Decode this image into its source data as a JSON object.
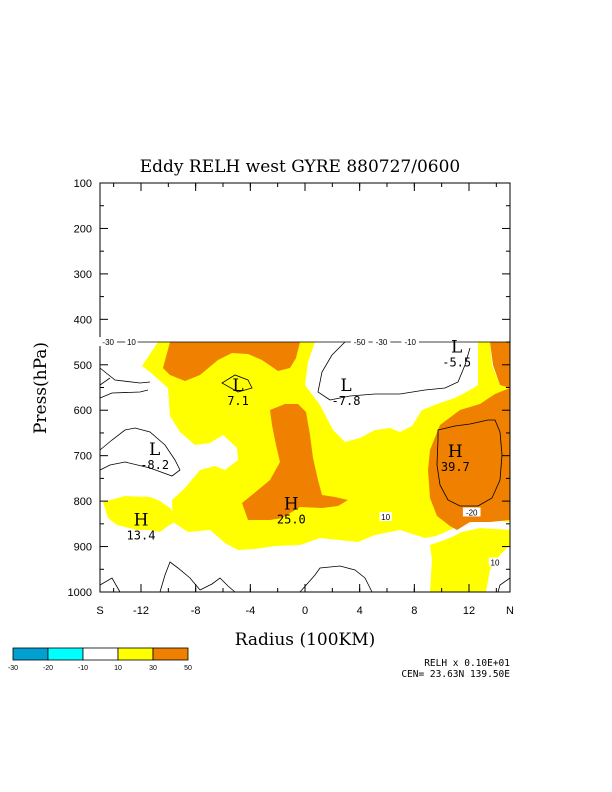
{
  "chart_data": {
    "type": "contour",
    "title": "Eddy RELH west GYRE 880727/0600",
    "xlabel": "Radius (100KM)",
    "ylabel": "Press(hPa)",
    "xlim": [
      -15,
      15
    ],
    "ylim": [
      1000,
      100
    ],
    "y_ticks": [
      "100",
      "200",
      "300",
      "400",
      "500",
      "600",
      "700",
      "800",
      "900",
      "1000"
    ],
    "y_tick_values": [
      100,
      200,
      300,
      400,
      500,
      600,
      700,
      800,
      900,
      1000
    ],
    "x_ticks": [
      {
        "label": "S",
        "value": -15
      },
      {
        "label": "-12",
        "value": -12
      },
      {
        "label": "-8",
        "value": -8
      },
      {
        "label": "-4",
        "value": -4
      },
      {
        "label": "0",
        "value": 0
      },
      {
        "label": "4",
        "value": 4
      },
      {
        "label": "8",
        "value": 8
      },
      {
        "label": "12",
        "value": 12
      },
      {
        "label": "N",
        "value": 15
      }
    ],
    "data_top_hPa": 450,
    "legend": {
      "colors": [
        "#00a0d0",
        "#00ffff",
        "#ffffff",
        "#ffff00",
        "#f08000"
      ],
      "labels": [
        "-30",
        "-20",
        "-10",
        "10",
        "30",
        "50"
      ]
    },
    "extrema": [
      {
        "type": "L",
        "value": "-5.5",
        "x": 11.1,
        "p": 460
      },
      {
        "type": "L",
        "value": "7.1",
        "x": -4.9,
        "p": 545
      },
      {
        "type": "L",
        "value": "-7.8",
        "x": 3.0,
        "p": 545
      },
      {
        "type": "L",
        "value": "-8.2",
        "x": -11.0,
        "p": 685
      },
      {
        "type": "H",
        "value": "39.7",
        "x": 11.0,
        "p": 690
      },
      {
        "type": "H",
        "value": "25.0",
        "x": -1.0,
        "p": 805
      },
      {
        "type": "H",
        "value": "13.4",
        "x": -12.0,
        "p": 840
      }
    ],
    "contour_labels": [
      {
        "text": "-30",
        "x": -14.4,
        "p": 450
      },
      {
        "text": "10",
        "x": -12.7,
        "p": 450
      },
      {
        "text": "-50",
        "x": 4.0,
        "p": 450
      },
      {
        "text": "-30",
        "x": 5.6,
        "p": 450
      },
      {
        "text": "-10",
        "x": 7.7,
        "p": 450
      },
      {
        "text": "10",
        "x": 5.9,
        "p": 835
      },
      {
        "text": "-20",
        "x": 12.2,
        "p": 825
      },
      {
        "text": "10",
        "x": 13.9,
        "p": 935
      }
    ],
    "footer": {
      "line1": "RELH x  0.10E+01",
      "line2": "CEN= 23.63N  139.50E"
    }
  }
}
